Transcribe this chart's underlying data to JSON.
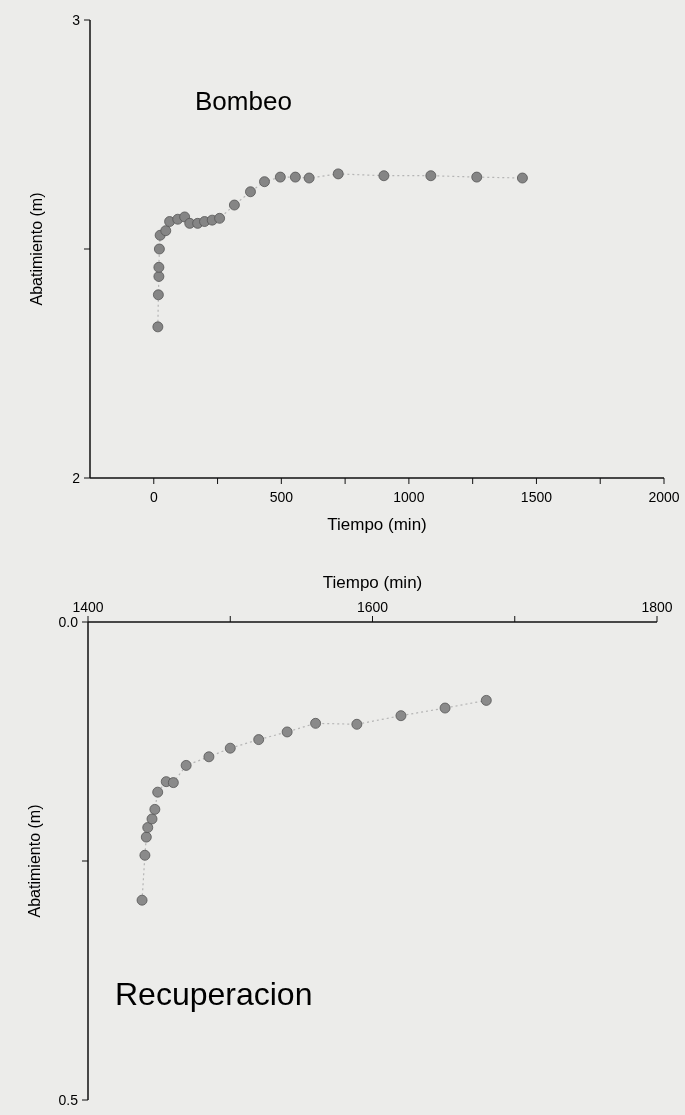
{
  "chart_data": [
    {
      "type": "line",
      "annotations": [
        "Bombeo"
      ],
      "xlabel": "Tiempo (min)",
      "ylabel": "Abatimiento (m)",
      "xlim": [
        -250,
        2000
      ],
      "xticks": [
        0,
        {
          "value": 250,
          "label": null
        },
        500,
        {
          "value": 750,
          "label": null
        },
        1000,
        {
          "value": 1250,
          "label": null
        },
        1500,
        {
          "value": 1750,
          "label": null
        },
        2000
      ],
      "ylim": [
        2,
        3
      ],
      "yticks": [
        2,
        {
          "value": 2.5,
          "label": null
        },
        3
      ],
      "marker": "circle",
      "line_style": "dotted",
      "series": [
        {
          "color": "#858585",
          "x": [
            16,
            18,
            20,
            20,
            22,
            25,
            47,
            62,
            94,
            121,
            141,
            172,
            199,
            229,
            258,
            316,
            379,
            434,
            496,
            555,
            609,
            723,
            902,
            1086,
            1266,
            1445
          ],
          "values": [
            2.33,
            2.4,
            2.44,
            2.46,
            2.5,
            2.53,
            2.54,
            2.56,
            2.565,
            2.57,
            2.556,
            2.556,
            2.56,
            2.563,
            2.567,
            2.596,
            2.625,
            2.647,
            2.657,
            2.657,
            2.655,
            2.664,
            2.66,
            2.66,
            2.657,
            2.655
          ]
        }
      ]
    },
    {
      "type": "line",
      "annotations": [
        "Recuperacion"
      ],
      "xlabel": "Tiempo (min)",
      "ylabel": "Abatimiento (m)",
      "xlim": [
        1400,
        1800
      ],
      "xticks": [
        1400,
        {
          "value": 1500,
          "label": null
        },
        1600,
        {
          "value": 1700,
          "label": null
        },
        1800
      ],
      "ylim": [
        0.5,
        0
      ],
      "yticks": [
        {
          "value": 0,
          "label": "0.0"
        },
        {
          "value": 0.25,
          "label": null
        },
        {
          "value": 0.5,
          "label": "0.5"
        }
      ],
      "marker": "circle",
      "line_style": "dotted",
      "series": [
        {
          "color": "#8a8a8a",
          "x": [
            1438,
            1440,
            1441,
            1442,
            1445,
            1447,
            1449,
            1455,
            1460,
            1469,
            1485,
            1500,
            1520,
            1540,
            1560,
            1589,
            1620,
            1651,
            1680
          ],
          "values": [
            0.291,
            0.244,
            0.225,
            0.215,
            0.206,
            0.196,
            0.178,
            0.167,
            0.168,
            0.15,
            0.141,
            0.132,
            0.123,
            0.115,
            0.106,
            0.107,
            0.098,
            0.09,
            0.082
          ]
        }
      ]
    }
  ]
}
